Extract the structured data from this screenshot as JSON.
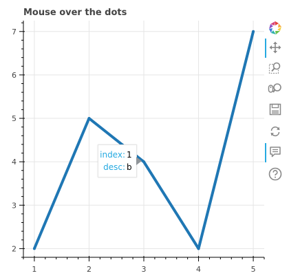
{
  "chart_data": {
    "type": "line",
    "title": "Mouse over the dots",
    "xlabel": "",
    "ylabel": "",
    "x": [
      1,
      2,
      3,
      4,
      5
    ],
    "series": [
      {
        "values": [
          2,
          5,
          4,
          2,
          7
        ],
        "color": "#1f77b4"
      }
    ],
    "xlim": [
      0.8,
      5.2
    ],
    "ylim": [
      1.8,
      7.25
    ],
    "xticks": [
      1,
      2,
      3,
      4,
      5
    ],
    "yticks": [
      2,
      3,
      4,
      5,
      6,
      7
    ],
    "grid": true,
    "legend": "none"
  },
  "tooltip": {
    "rows": [
      {
        "label": "index:",
        "value": "1"
      },
      {
        "label": "desc:",
        "value": "b"
      }
    ]
  },
  "toolbar": {
    "tools": [
      {
        "name": "bokeh-logo-icon",
        "active": false
      },
      {
        "name": "pan-icon",
        "active": true
      },
      {
        "name": "box-zoom-icon",
        "active": false
      },
      {
        "name": "wheel-zoom-icon",
        "active": false
      },
      {
        "name": "save-icon",
        "active": false
      },
      {
        "name": "reset-icon",
        "active": false
      },
      {
        "name": "hover-icon",
        "active": true
      },
      {
        "name": "help-icon",
        "active": false
      }
    ],
    "accent_color": "#26aae1"
  }
}
